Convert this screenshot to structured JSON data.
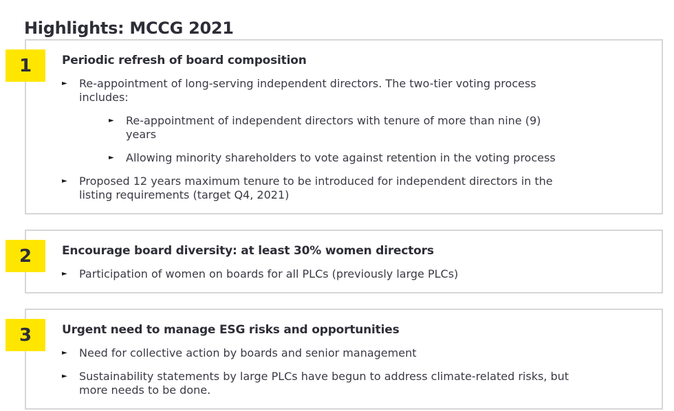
{
  "page_title": "Highlights: MCCG 2021",
  "glyphs": {
    "bullet": "►"
  },
  "colors": {
    "accent_yellow": "#ffe600",
    "heading_text": "#2e2e38",
    "body_text": "#3a3a44",
    "box_border": "#d6d6d6"
  },
  "sections": [
    {
      "number": "1",
      "heading": "Periodic refresh of board composition",
      "bullets": [
        {
          "level": 1,
          "text": "Re-appointment of long-serving independent directors. The two-tier voting process\nincludes:"
        },
        {
          "level": 2,
          "text": "Re-appointment of independent directors with tenure of more than nine (9)\nyears"
        },
        {
          "level": 2,
          "text": "Allowing minority shareholders to vote against retention in the voting process"
        },
        {
          "level": 1,
          "text": "Proposed 12 years maximum tenure to be introduced for independent directors in the\nlisting requirements (target Q4, 2021)"
        }
      ]
    },
    {
      "number": "2",
      "heading": "Encourage board diversity: at least 30% women directors",
      "bullets": [
        {
          "level": 1,
          "text": "Participation of women on boards for all PLCs (previously large PLCs)"
        }
      ]
    },
    {
      "number": "3",
      "heading": "Urgent need to manage ESG risks and opportunities",
      "bullets": [
        {
          "level": 1,
          "text": "Need for collective action by boards and senior management"
        },
        {
          "level": 1,
          "text": "Sustainability statements by large PLCs have begun to address climate-related risks, but\nmore needs to be done."
        }
      ]
    }
  ]
}
